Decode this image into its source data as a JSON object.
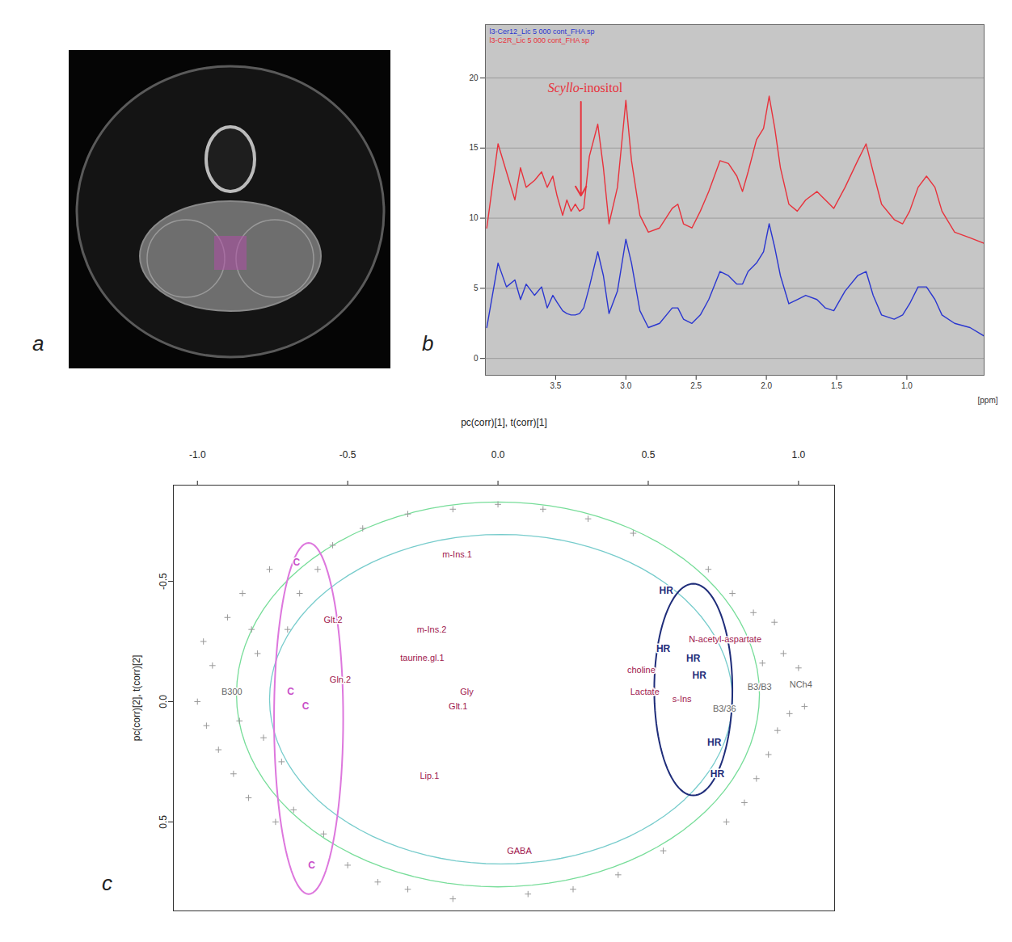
{
  "chart_data": [
    {
      "panel": "a",
      "type": "image"
    },
    {
      "panel": "b",
      "type": "line",
      "xlabel": "[ppm]",
      "xlim": [
        4.0,
        0.45
      ],
      "xticks": [
        3.5,
        {
          "value": 3,
          "label": "3.0"
        },
        2.5,
        {
          "value": 2,
          "label": "2.0"
        },
        1.5,
        {
          "value": 1,
          "label": "1.0"
        }
      ],
      "ylim": [
        -1.2,
        23.8
      ],
      "yticks": [
        0,
        5,
        10,
        15,
        20
      ],
      "grid": true,
      "legend": "top-left",
      "x": [
        3.99,
        3.91,
        3.85,
        3.79,
        3.75,
        3.71,
        3.65,
        3.6,
        3.56,
        3.52,
        3.49,
        3.45,
        3.42,
        3.39,
        3.36,
        3.33,
        3.3,
        3.26,
        3.2,
        3.16,
        3.12,
        3.06,
        3.0,
        2.96,
        2.9,
        2.84,
        2.76,
        2.67,
        2.63,
        2.59,
        2.53,
        2.47,
        2.41,
        2.33,
        2.27,
        2.21,
        2.17,
        2.13,
        2.07,
        2.02,
        1.98,
        1.94,
        1.9,
        1.84,
        1.78,
        1.72,
        1.64,
        1.58,
        1.52,
        1.44,
        1.35,
        1.29,
        1.24,
        1.18,
        1.09,
        1.03,
        0.98,
        0.92,
        0.86,
        0.8,
        0.75,
        0.66,
        0.55,
        0.45
      ],
      "series": [
        {
          "name": "l3-Cer12_Lic 5 000 cont_FHA sp",
          "color": "#2a36d0",
          "values": [
            2.2,
            6.8,
            5.1,
            5.6,
            4.2,
            5.3,
            4.5,
            5.1,
            3.6,
            4.5,
            4.0,
            3.4,
            3.2,
            3.1,
            3.1,
            3.2,
            3.6,
            5.1,
            7.6,
            5.9,
            3.2,
            4.8,
            8.5,
            6.8,
            3.4,
            2.2,
            2.5,
            3.6,
            3.6,
            2.8,
            2.5,
            3.1,
            4.2,
            6.2,
            5.9,
            5.3,
            5.3,
            6.2,
            6.8,
            7.6,
            9.6,
            7.9,
            5.9,
            3.9,
            4.2,
            4.5,
            4.2,
            3.6,
            3.4,
            4.8,
            5.9,
            6.2,
            4.5,
            3.1,
            2.8,
            3.1,
            3.9,
            5.1,
            5.1,
            4.2,
            3.1,
            2.5,
            2.2,
            1.6
          ]
        },
        {
          "name": "l3-C2R_Lic 5 000 cont_FHA sp",
          "color": "#e8323c",
          "values": [
            9.3,
            15.3,
            13.3,
            11.3,
            13.6,
            12.2,
            12.7,
            13.3,
            12.2,
            13.0,
            11.6,
            10.2,
            11.3,
            10.5,
            11.0,
            10.5,
            10.7,
            14.4,
            16.7,
            13.6,
            9.6,
            12.2,
            18.4,
            14.1,
            10.2,
            9.0,
            9.3,
            10.7,
            11.0,
            9.6,
            9.3,
            10.5,
            11.9,
            14.1,
            13.9,
            13.0,
            11.9,
            13.3,
            15.6,
            16.4,
            18.7,
            16.4,
            13.6,
            11.0,
            10.5,
            11.3,
            11.9,
            11.3,
            10.7,
            12.2,
            14.1,
            15.3,
            13.3,
            11.0,
            9.9,
            9.6,
            10.5,
            12.2,
            13.0,
            12.2,
            10.5,
            9.0,
            8.6,
            8.2
          ]
        }
      ],
      "annotations": [
        {
          "text": "Scyllo-inositol",
          "x": 3.29,
          "y": 19.3,
          "color": "#e8323c",
          "arrow_x": 3.32,
          "arrow_from": 18.3,
          "arrow_to": 11.6
        }
      ]
    },
    {
      "panel": "c",
      "type": "scatter",
      "xlabel": "pc(corr)[1], t(corr)[1]",
      "ylabel": "pc(corr)[2], t(corr)[2]",
      "xlim": [
        -1.08,
        1.12
      ],
      "ylim": [
        -0.9,
        0.87
      ],
      "xticks": [
        {
          "value": -1,
          "label": "-1.0"
        },
        -0.5,
        {
          "value": 0,
          "label": "0.0"
        },
        0.5,
        {
          "value": 1,
          "label": "1.0"
        }
      ],
      "yticks": [
        -0.5,
        {
          "value": 0,
          "label": "0.0"
        },
        0.5
      ],
      "variables": {
        "color": "#999999",
        "marker": "plus",
        "points": [
          [
            -0.98,
            -0.25
          ],
          [
            -0.95,
            -0.15
          ],
          [
            -0.97,
            0.1
          ],
          [
            -0.93,
            0.2
          ],
          [
            -0.9,
            -0.35
          ],
          [
            -0.88,
            0.3
          ],
          [
            -0.85,
            -0.45
          ],
          [
            -0.83,
            0.4
          ],
          [
            -0.8,
            -0.2
          ],
          [
            -0.78,
            0.15
          ],
          [
            -0.76,
            -0.55
          ],
          [
            -0.74,
            0.5
          ],
          [
            -0.7,
            -0.3
          ],
          [
            -0.72,
            0.25
          ],
          [
            -0.68,
            0.45
          ],
          [
            -0.66,
            -0.45
          ],
          [
            -0.6,
            -0.55
          ],
          [
            -0.58,
            0.55
          ],
          [
            -0.55,
            -0.65
          ],
          [
            -0.5,
            0.68
          ],
          [
            -0.45,
            -0.72
          ],
          [
            -0.4,
            0.75
          ],
          [
            -0.82,
            -0.3
          ],
          [
            -0.86,
            0.08
          ],
          [
            -1.0,
            0.0
          ],
          [
            -0.3,
            -0.78
          ],
          [
            -0.15,
            -0.8
          ],
          [
            0.0,
            -0.82
          ],
          [
            0.15,
            -0.8
          ],
          [
            0.3,
            -0.76
          ],
          [
            0.45,
            -0.7
          ],
          [
            -0.3,
            0.78
          ],
          [
            -0.15,
            0.82
          ],
          [
            0.1,
            0.8
          ],
          [
            0.25,
            0.78
          ],
          [
            0.4,
            0.72
          ],
          [
            0.55,
            0.62
          ],
          [
            0.7,
            -0.55
          ],
          [
            0.78,
            -0.45
          ],
          [
            0.85,
            -0.37
          ],
          [
            0.92,
            -0.33
          ],
          [
            0.95,
            -0.2
          ],
          [
            1.0,
            -0.14
          ],
          [
            0.97,
            0.05
          ],
          [
            0.93,
            0.12
          ],
          [
            0.9,
            0.22
          ],
          [
            0.86,
            0.32
          ],
          [
            0.82,
            0.42
          ],
          [
            0.76,
            0.5
          ],
          [
            0.88,
            -0.16
          ],
          [
            1.02,
            0.02
          ]
        ]
      },
      "series": [
        {
          "name": "HR",
          "color": "#1f2d7a",
          "points": [
            [
              0.56,
              -0.46
            ],
            [
              0.55,
              -0.22
            ],
            [
              0.65,
              -0.18
            ],
            [
              0.67,
              -0.11
            ],
            [
              0.72,
              0.17
            ],
            [
              0.73,
              0.3
            ]
          ]
        },
        {
          "name": "C",
          "color": "#c94fc9",
          "points": [
            [
              -0.67,
              -0.58
            ],
            [
              -0.69,
              -0.04
            ],
            [
              -0.64,
              0.02
            ],
            [
              -0.62,
              0.68
            ]
          ]
        }
      ],
      "loadings": {
        "color": "#a0184e",
        "labels": [
          {
            "text": "m-Ins.1",
            "x": -0.185,
            "y": -0.61
          },
          {
            "text": "Glt.2",
            "x": -0.58,
            "y": -0.34
          },
          {
            "text": "m-Ins.2",
            "x": -0.27,
            "y": -0.3
          },
          {
            "text": "taurine.gl.1",
            "x": -0.325,
            "y": -0.18
          },
          {
            "text": "Gln.2",
            "x": -0.56,
            "y": -0.09
          },
          {
            "text": "Gly",
            "x": -0.126,
            "y": -0.04
          },
          {
            "text": "Glt.1",
            "x": -0.164,
            "y": 0.02
          },
          {
            "text": "Lip.1",
            "x": -0.26,
            "y": 0.31
          },
          {
            "text": "GABA",
            "x": 0.03,
            "y": 0.62
          },
          {
            "text": "choline",
            "x": 0.43,
            "y": -0.13
          },
          {
            "text": "Lactate",
            "x": 0.44,
            "y": -0.04
          },
          {
            "text": "s-Ins",
            "x": 0.58,
            "y": -0.01
          },
          {
            "text": "N-acetyl-aspartate",
            "x": 0.635,
            "y": -0.26
          }
        ]
      },
      "other_labels": {
        "color": "#666666",
        "labels": [
          {
            "text": "B300",
            "x": -0.92,
            "y": -0.04
          },
          {
            "text": "B3/B3",
            "x": 0.83,
            "y": -0.06
          },
          {
            "text": "B3/36",
            "x": 0.715,
            "y": 0.03
          },
          {
            "text": "NCh4",
            "x": 0.97,
            "y": -0.07
          }
        ]
      },
      "rings": [
        {
          "center": [
            0,
            -0.03
          ],
          "radii": [
            0.87,
            0.8
          ],
          "color": "#77dd99"
        },
        {
          "center": [
            0.01,
            -0.01
          ],
          "radii": [
            0.77,
            0.685
          ],
          "color": "#77cccc"
        }
      ],
      "group_ellipses": [
        {
          "name": "C",
          "center": [
            -0.63,
            0.07
          ],
          "radii": [
            0.115,
            0.73
          ],
          "color": "#dd77dd"
        },
        {
          "name": "HR",
          "center": [
            0.65,
            -0.05
          ],
          "radii": [
            0.13,
            0.44
          ],
          "color": "#1f2d7a"
        }
      ]
    }
  ]
}
